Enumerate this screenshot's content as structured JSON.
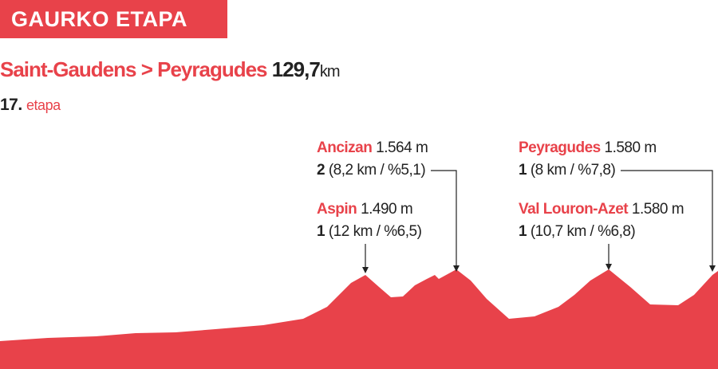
{
  "header": {
    "badge": "GAURKO ETAPA",
    "route": "Saint-Gaudens > Peyragudes",
    "distance": "129,7",
    "distance_unit": "km",
    "stage_number": "17.",
    "stage_word": "etapa"
  },
  "climbs": [
    {
      "name": "Ancizan",
      "altitude": "1.564 m",
      "category": "2",
      "detail": "(8,2 km / %5,1)"
    },
    {
      "name": "Aspin",
      "altitude": "1.490 m",
      "category": "1",
      "detail": "(12 km / %6,5)"
    },
    {
      "name": "Peyragudes",
      "altitude": "1.580 m",
      "category": "1",
      "detail": "(8 km / %7,8)"
    },
    {
      "name": "Val Louron-Azet",
      "altitude": "1.580 m",
      "category": "1",
      "detail": "(10,7 km / %6,8)"
    }
  ]
}
